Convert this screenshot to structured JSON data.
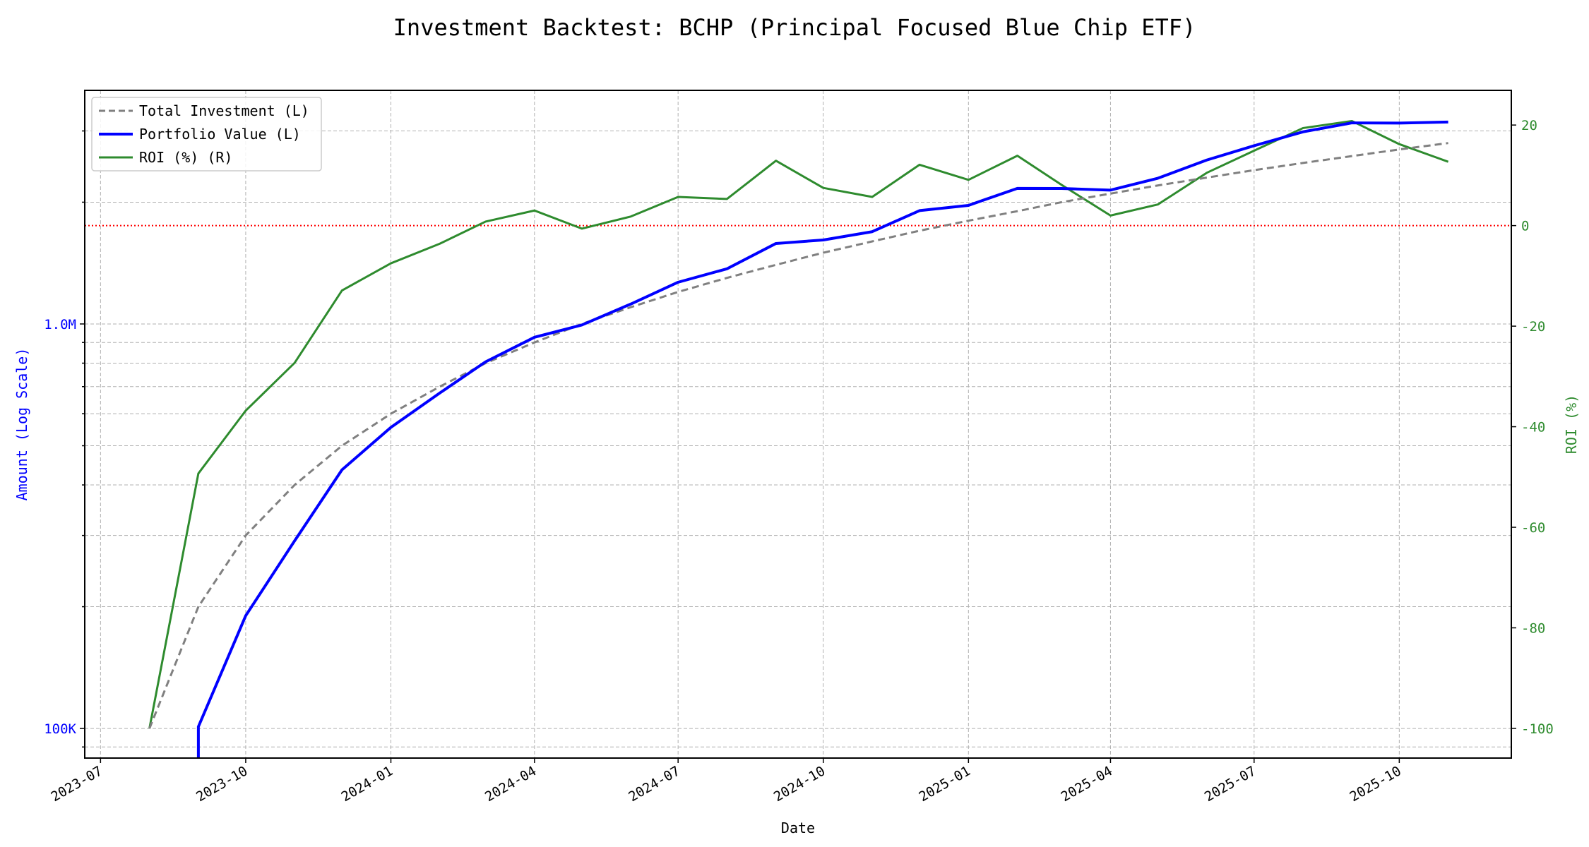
{
  "chart_data": {
    "type": "line",
    "title": "Investment Backtest: BCHP (Principal Focused Blue Chip ETF)",
    "xlabel": "Date",
    "ylabel_left": "Amount (Log Scale)",
    "ylabel_right": "ROI (%)",
    "left_scale": "log",
    "xlim": [
      "2023-06-21",
      "2025-12-11"
    ],
    "ylim_left": [
      84500,
      3780000
    ],
    "ylim_right": [
      -105.9,
      26.9
    ],
    "grid": true,
    "legend_placement": "top-left",
    "x_tick_labels": [
      "2023-07",
      "2023-10",
      "2024-01",
      "2024-04",
      "2024-07",
      "2024-10",
      "2025-01",
      "2025-04",
      "2025-07",
      "2025-10"
    ],
    "left_tick_labels": [
      {
        "value": 100000,
        "label": "100K"
      },
      {
        "value": 1000000,
        "label": "1.0M"
      }
    ],
    "right_tick_labels": [
      20,
      0,
      -20,
      -40,
      -60,
      -80,
      -100
    ],
    "reference_line": {
      "axis": "right",
      "value": 0,
      "color": "#ff0000",
      "style": "dotted"
    },
    "x": [
      "2023-08-01",
      "2023-09-01",
      "2023-10-01",
      "2023-11-01",
      "2023-12-01",
      "2024-01-01",
      "2024-02-01",
      "2024-03-01",
      "2024-04-01",
      "2024-05-01",
      "2024-06-01",
      "2024-07-01",
      "2024-08-01",
      "2024-09-01",
      "2024-10-01",
      "2024-11-01",
      "2024-12-01",
      "2025-01-01",
      "2025-02-01",
      "2025-03-01",
      "2025-04-01",
      "2025-05-01",
      "2025-06-01",
      "2025-07-01",
      "2025-08-01",
      "2025-09-01",
      "2025-10-01",
      "2025-11-01"
    ],
    "series": [
      {
        "name": "Total Investment (L)",
        "axis": "left",
        "color": "#808080",
        "style": "dashed",
        "values": [
          100000,
          200000,
          300000,
          400000,
          500000,
          600000,
          700000,
          800000,
          900000,
          1000000,
          1100000,
          1200000,
          1300000,
          1400000,
          1500000,
          1600000,
          1700000,
          1800000,
          1900000,
          2000000,
          2100000,
          2200000,
          2300000,
          2400000,
          2500000,
          2600000,
          2700000,
          2800000
        ]
      },
      {
        "name": "Portfolio Value (L)",
        "axis": "left",
        "color": "#0000ff",
        "style": "solid",
        "values": [
          0,
          101000,
          190000,
          291000,
          436000,
          555000,
          675000,
          806000,
          927000,
          994000,
          1120000,
          1268000,
          1369000,
          1581000,
          1613000,
          1691000,
          1906000,
          1964000,
          2164000,
          2162000,
          2142000,
          2292000,
          2542000,
          2758000,
          2985000,
          3141000,
          3137000,
          3156000
        ]
      },
      {
        "name": "ROI (%) (R)",
        "axis": "right",
        "color": "#2e8b2e",
        "style": "solid",
        "values": [
          -100,
          -49.3,
          -36.8,
          -27.3,
          -12.9,
          -7.5,
          -3.6,
          0.8,
          3.0,
          -0.6,
          1.8,
          5.7,
          5.3,
          12.9,
          7.5,
          5.7,
          12.1,
          9.1,
          13.9,
          8.1,
          2.0,
          4.2,
          10.5,
          14.9,
          19.4,
          20.8,
          16.2,
          12.7
        ]
      }
    ]
  }
}
